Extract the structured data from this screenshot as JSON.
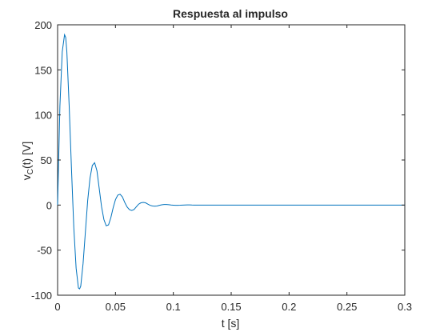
{
  "chart_data": {
    "type": "line",
    "title": "Respuesta al impulso",
    "xlabel": "t [s]",
    "ylabel": {
      "main": "v",
      "sub": "C",
      "rest": "(t) [V]"
    },
    "xlim": [
      0,
      0.3
    ],
    "ylim": [
      -100,
      200
    ],
    "xticks": [
      0,
      0.05,
      0.1,
      0.15,
      0.2,
      0.25,
      0.3
    ],
    "xtick_labels": [
      "0",
      "0.05",
      "0.1",
      "0.15",
      "0.2",
      "0.25",
      "0.3"
    ],
    "yticks": [
      -100,
      -50,
      0,
      50,
      100,
      150,
      200
    ],
    "ytick_labels": [
      "-100",
      "-50",
      "0",
      "50",
      "100",
      "150",
      "200"
    ],
    "grid": false,
    "color": "#0072bd",
    "series": [
      {
        "x": [
          0,
          0.002,
          0.004,
          0.006,
          0.007,
          0.008,
          0.01,
          0.012,
          0.014,
          0.016,
          0.018,
          0.019,
          0.02,
          0.022,
          0.024,
          0.026,
          0.028,
          0.03,
          0.032,
          0.034,
          0.036,
          0.038,
          0.04,
          0.042,
          0.044,
          0.046,
          0.048,
          0.05,
          0.052,
          0.054,
          0.056,
          0.058,
          0.06,
          0.062,
          0.064,
          0.066,
          0.068,
          0.07,
          0.072,
          0.074,
          0.076,
          0.078,
          0.08,
          0.082,
          0.084,
          0.086,
          0.088,
          0.09,
          0.092,
          0.094,
          0.096,
          0.098,
          0.1,
          0.102,
          0.104,
          0.106,
          0.108,
          0.11,
          0.112,
          0.114,
          0.116,
          0.118,
          0.12,
          0.125,
          0.13,
          0.14,
          0.15,
          0.2,
          0.25,
          0.3
        ],
        "y": [
          0,
          110,
          170,
          189,
          186,
          170,
          110,
          40,
          -25,
          -70,
          -92,
          -93,
          -90,
          -65,
          -30,
          5,
          30,
          44,
          47,
          38,
          18,
          -2,
          -16,
          -23,
          -22,
          -14,
          -3,
          6,
          11,
          12,
          9,
          3,
          -2,
          -5,
          -6,
          -5,
          -2,
          1,
          2.5,
          3,
          2.5,
          1,
          -0.3,
          -1,
          -1.3,
          -1,
          -0.3,
          0.3,
          0.6,
          0.6,
          0.4,
          0.1,
          -0.1,
          -0.3,
          -0.3,
          -0.2,
          0,
          0.1,
          0.2,
          0.15,
          0.05,
          0,
          0,
          0,
          0,
          0,
          0,
          0,
          0,
          0
        ]
      }
    ]
  }
}
